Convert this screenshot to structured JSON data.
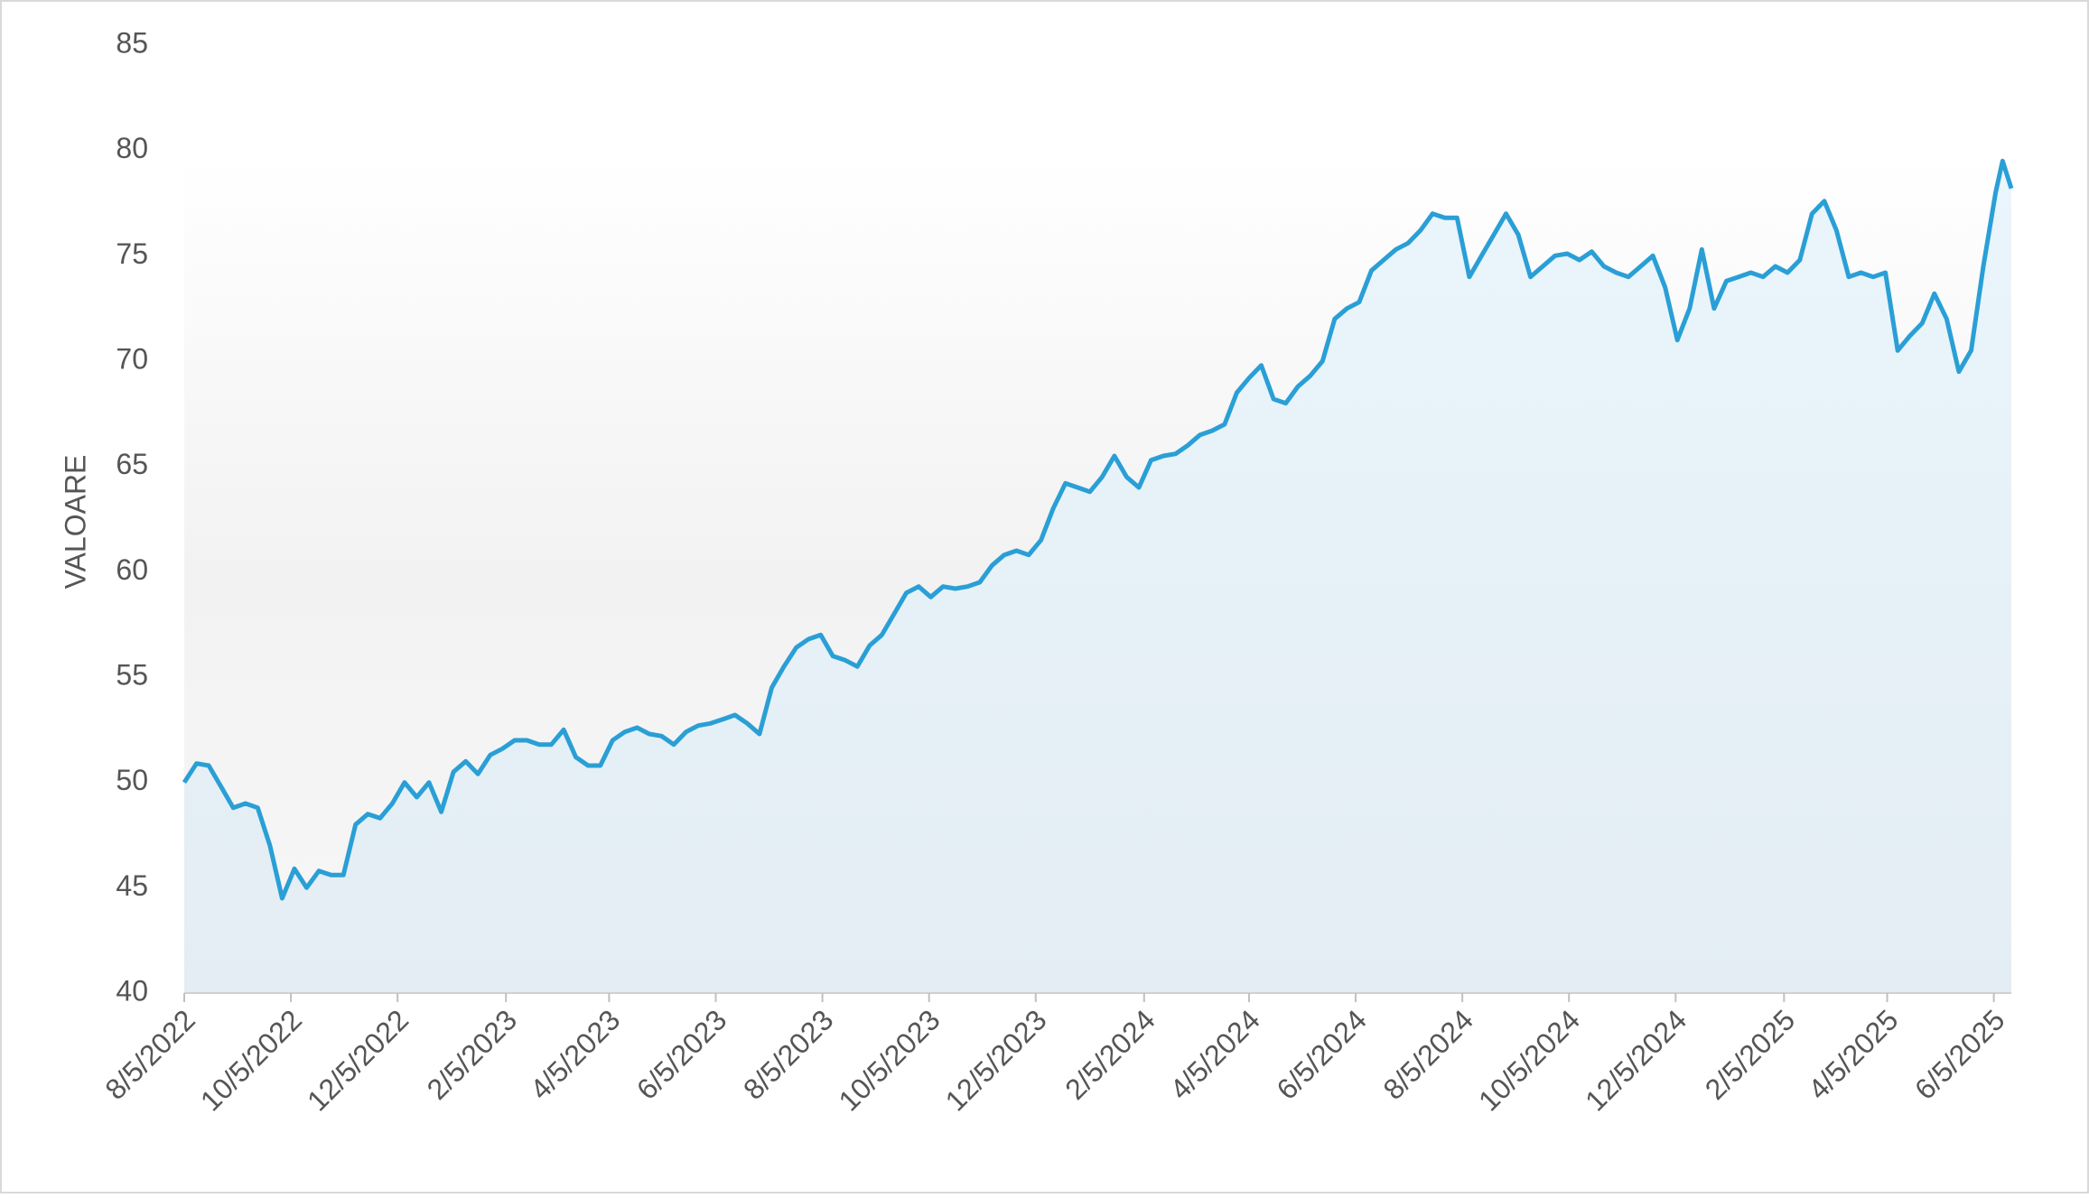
{
  "chart_data": {
    "type": "area",
    "y_label": "VALOARE",
    "x": [
      "8/5/2022",
      "8/12/2022",
      "8/19/2022",
      "8/26/2022",
      "9/2/2022",
      "9/9/2022",
      "9/16/2022",
      "9/23/2022",
      "9/30/2022",
      "10/7/2022",
      "10/14/2022",
      "10/21/2022",
      "10/28/2022",
      "11/4/2022",
      "11/11/2022",
      "11/18/2022",
      "11/25/2022",
      "12/2/2022",
      "12/9/2022",
      "12/16/2022",
      "12/23/2022",
      "12/30/2022",
      "1/6/2023",
      "1/13/2023",
      "1/20/2023",
      "1/27/2023",
      "2/3/2023",
      "2/10/2023",
      "2/17/2023",
      "2/24/2023",
      "3/3/2023",
      "3/10/2023",
      "3/17/2023",
      "3/24/2023",
      "3/31/2023",
      "4/7/2023",
      "4/14/2023",
      "4/21/2023",
      "4/28/2023",
      "5/5/2023",
      "5/12/2023",
      "5/19/2023",
      "5/26/2023",
      "6/2/2023",
      "6/9/2023",
      "6/16/2023",
      "6/23/2023",
      "6/30/2023",
      "7/7/2023",
      "7/14/2023",
      "7/21/2023",
      "7/28/2023",
      "8/4/2023",
      "8/11/2023",
      "8/18/2023",
      "8/25/2023",
      "9/1/2023",
      "9/8/2023",
      "9/15/2023",
      "9/22/2023",
      "9/29/2023",
      "10/6/2023",
      "10/13/2023",
      "10/20/2023",
      "10/27/2023",
      "11/3/2023",
      "11/10/2023",
      "11/17/2023",
      "11/24/2023",
      "12/1/2023",
      "12/8/2023",
      "12/15/2023",
      "12/22/2023",
      "12/29/2023",
      "1/5/2024",
      "1/12/2024",
      "1/19/2024",
      "1/26/2024",
      "2/2/2024",
      "2/9/2024",
      "2/16/2024",
      "2/23/2024",
      "3/1/2024",
      "3/8/2024",
      "3/15/2024",
      "3/22/2024",
      "3/29/2024",
      "4/5/2024",
      "4/12/2024",
      "4/19/2024",
      "4/26/2024",
      "5/3/2024",
      "5/10/2024",
      "5/17/2024",
      "5/24/2024",
      "5/31/2024",
      "6/7/2024",
      "6/14/2024",
      "6/21/2024",
      "6/28/2024",
      "7/5/2024",
      "7/12/2024",
      "7/19/2024",
      "7/26/2024",
      "8/2/2024",
      "8/9/2024",
      "8/16/2024",
      "8/23/2024",
      "8/30/2024",
      "9/6/2024",
      "9/13/2024",
      "9/20/2024",
      "9/27/2024",
      "10/4/2024",
      "10/11/2024",
      "10/18/2024",
      "10/25/2024",
      "11/1/2024",
      "11/8/2024",
      "11/15/2024",
      "11/22/2024",
      "11/29/2024",
      "12/6/2024",
      "12/13/2024",
      "12/20/2024",
      "12/27/2024",
      "1/3/2025",
      "1/10/2025",
      "1/17/2025",
      "1/24/2025",
      "1/31/2025",
      "2/7/2025",
      "2/14/2025",
      "2/21/2025",
      "2/28/2025",
      "3/7/2025",
      "3/14/2025",
      "3/21/2025",
      "3/28/2025",
      "4/4/2025",
      "4/11/2025",
      "4/18/2025",
      "4/25/2025",
      "5/2/2025",
      "5/9/2025",
      "5/16/2025",
      "5/23/2025",
      "5/30/2025",
      "6/6/2025",
      "6/10/2025",
      "6/15/2025"
    ],
    "values": [
      50.0,
      50.9,
      50.8,
      49.8,
      48.8,
      49.0,
      48.8,
      47.0,
      44.5,
      45.9,
      45.0,
      45.8,
      45.6,
      45.6,
      48.0,
      48.5,
      48.3,
      49.0,
      50.0,
      49.3,
      50.0,
      48.6,
      50.5,
      51.0,
      50.4,
      51.3,
      51.6,
      52.0,
      52.0,
      51.8,
      51.8,
      52.5,
      51.2,
      50.8,
      50.8,
      52.0,
      52.4,
      52.6,
      52.3,
      52.2,
      51.8,
      52.4,
      52.7,
      52.8,
      53.0,
      53.2,
      52.8,
      52.3,
      54.5,
      55.5,
      56.4,
      56.8,
      57.0,
      56.0,
      55.8,
      55.5,
      56.5,
      57.0,
      58.0,
      59.0,
      59.3,
      58.8,
      59.3,
      59.2,
      59.3,
      59.5,
      60.3,
      60.8,
      61.0,
      60.8,
      61.5,
      63.0,
      64.2,
      64.0,
      63.8,
      64.5,
      65.5,
      64.5,
      64.0,
      65.3,
      65.5,
      65.6,
      66.0,
      66.5,
      66.7,
      67.0,
      68.5,
      69.2,
      69.8,
      68.2,
      68.0,
      68.8,
      69.3,
      70.0,
      72.0,
      72.5,
      72.8,
      74.3,
      74.8,
      75.3,
      75.6,
      76.2,
      77.0,
      76.8,
      76.8,
      74.0,
      75.0,
      76.0,
      77.0,
      76.0,
      74.0,
      74.5,
      75.0,
      75.1,
      74.8,
      75.2,
      74.5,
      74.2,
      74.0,
      74.5,
      75.0,
      73.5,
      71.0,
      72.5,
      75.3,
      72.5,
      73.8,
      74.0,
      74.2,
      74.0,
      74.5,
      74.2,
      74.8,
      77.0,
      77.6,
      76.2,
      74.0,
      74.2,
      74.0,
      74.2,
      70.5,
      71.2,
      71.8,
      73.2,
      72.0,
      69.5,
      70.5,
      74.5,
      78.0,
      79.5,
      78.2
    ],
    "color": "#2a9fd6",
    "xlim": [
      "8/5/2022",
      "6/15/2025"
    ],
    "xticks": [
      "8/5/2022",
      "10/5/2022",
      "12/5/2022",
      "2/5/2023",
      "4/5/2023",
      "6/5/2023",
      "8/5/2023",
      "10/5/2023",
      "12/5/2023",
      "2/5/2024",
      "4/5/2024",
      "6/5/2024",
      "8/5/2024",
      "10/5/2024",
      "12/5/2024",
      "2/5/2025",
      "4/5/2025",
      "6/5/2025"
    ],
    "ylim": [
      40,
      85
    ],
    "yticks": [
      40,
      45,
      50,
      55,
      60,
      65,
      70,
      75,
      80,
      85
    ]
  }
}
